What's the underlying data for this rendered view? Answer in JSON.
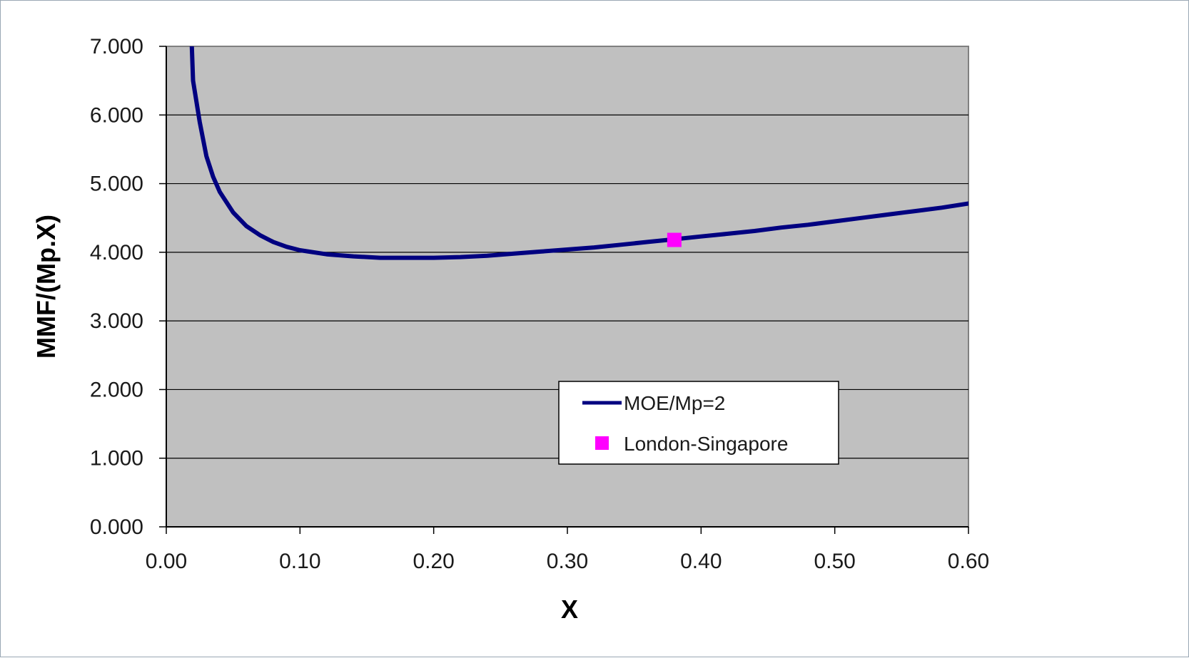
{
  "colors": {
    "plot_background": "#c0c0c0",
    "line": "#000080",
    "marker": "#ff00ff",
    "gridline": "#000000"
  },
  "chart_data": {
    "type": "line",
    "xlabel": "X",
    "ylabel": "MMF/(Mp.X)",
    "xlim": [
      0.0,
      0.6
    ],
    "ylim": [
      0.0,
      7.0
    ],
    "grid": true,
    "legend_position": "center-right",
    "x_ticks": [
      "0.00",
      "0.10",
      "0.20",
      "0.30",
      "0.40",
      "0.50",
      "0.60"
    ],
    "y_ticks": [
      "0.000",
      "1.000",
      "2.000",
      "3.000",
      "4.000",
      "5.000",
      "6.000",
      "7.000"
    ],
    "series": [
      {
        "name": "MOE/Mp=2",
        "kind": "line",
        "x": [
          0.02,
          0.025,
          0.03,
          0.035,
          0.04,
          0.05,
          0.06,
          0.07,
          0.08,
          0.09,
          0.1,
          0.12,
          0.14,
          0.16,
          0.18,
          0.2,
          0.22,
          0.24,
          0.26,
          0.28,
          0.3,
          0.32,
          0.34,
          0.36,
          0.38,
          0.4,
          0.42,
          0.44,
          0.46,
          0.48,
          0.5,
          0.52,
          0.54,
          0.56,
          0.58,
          0.6
        ],
        "y": [
          6.5,
          5.9,
          5.4,
          5.1,
          4.88,
          4.58,
          4.38,
          4.25,
          4.15,
          4.08,
          4.03,
          3.97,
          3.94,
          3.92,
          3.92,
          3.92,
          3.93,
          3.95,
          3.98,
          4.01,
          4.04,
          4.07,
          4.11,
          4.15,
          4.19,
          4.23,
          4.27,
          4.31,
          4.36,
          4.4,
          4.45,
          4.5,
          4.55,
          4.6,
          4.65,
          4.71
        ]
      },
      {
        "name": "London-Singapore",
        "kind": "marker",
        "x": [
          0.38
        ],
        "y": [
          4.18
        ]
      }
    ]
  }
}
